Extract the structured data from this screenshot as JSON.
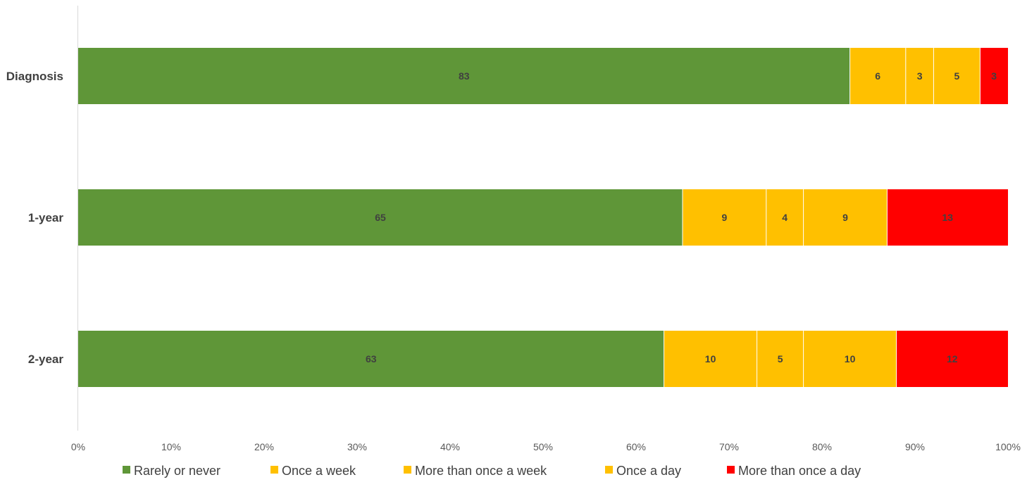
{
  "chart_data": {
    "type": "bar",
    "orientation": "horizontal",
    "stacked": true,
    "title": "",
    "xlabel": "",
    "ylabel": "",
    "categories": [
      "Diagnosis",
      "1-year",
      "2-year"
    ],
    "series": [
      {
        "name": "Rarely or never",
        "color": "#5f9638",
        "values": [
          83,
          65,
          63
        ]
      },
      {
        "name": "Once a week",
        "color": "#ffc000",
        "values": [
          6,
          9,
          10
        ]
      },
      {
        "name": "More than once a week",
        "color": "#ffc000",
        "values": [
          3,
          4,
          5
        ]
      },
      {
        "name": "Once a day",
        "color": "#ffc000",
        "values": [
          5,
          9,
          10
        ]
      },
      {
        "name": "More than once a day",
        "color": "#ff0000",
        "values": [
          3,
          13,
          12
        ]
      }
    ],
    "xlim": [
      0,
      100
    ],
    "xticks": [
      "0%",
      "10%",
      "20%",
      "30%",
      "40%",
      "50%",
      "60%",
      "70%",
      "80%",
      "90%",
      "100%"
    ],
    "grid": false,
    "legend_position": "bottom"
  }
}
